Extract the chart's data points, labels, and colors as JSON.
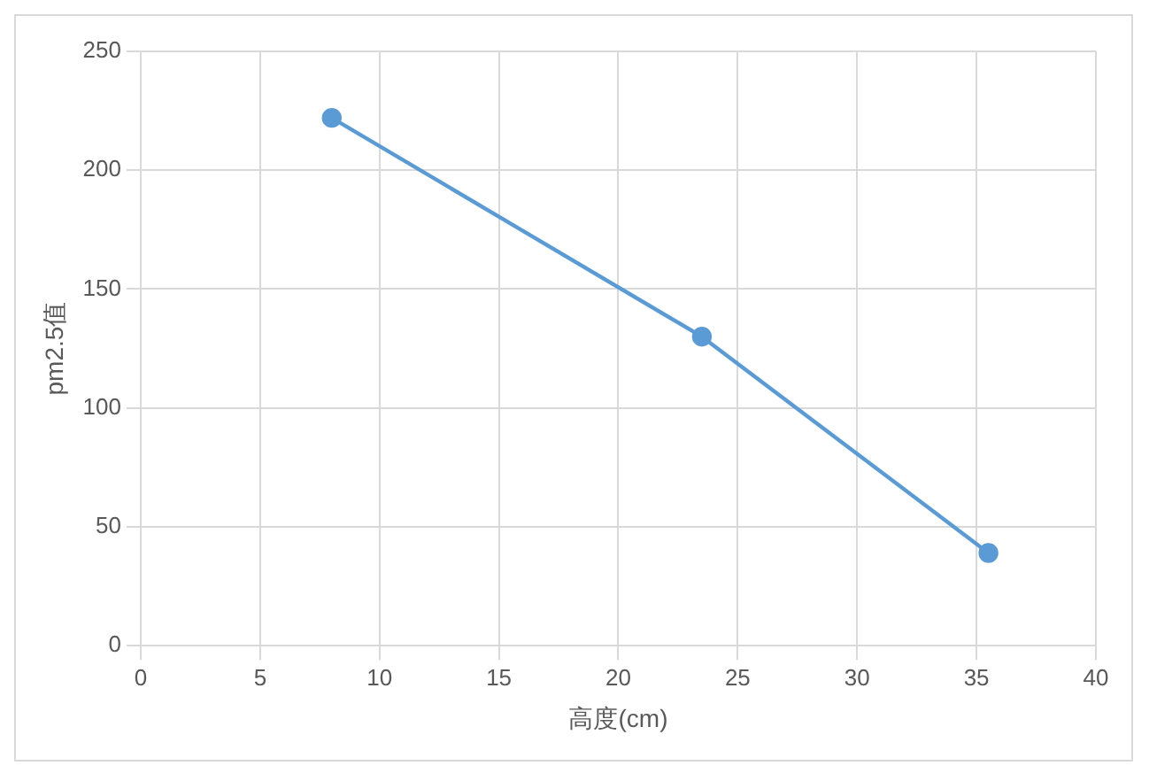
{
  "chart_data": {
    "type": "line",
    "xlabel": "高度(cm)",
    "ylabel": "pm2.5值",
    "x": [
      8,
      23.5,
      35.5
    ],
    "series": [
      {
        "color": "#5b9bd5",
        "values": [
          222,
          130,
          39
        ]
      }
    ],
    "xlim": [
      0,
      40
    ],
    "xticks": [
      0,
      5,
      10,
      15,
      20,
      25,
      30,
      35,
      40
    ],
    "ylim": [
      0,
      250
    ],
    "yticks": [
      0,
      50,
      100,
      150,
      200,
      250
    ],
    "grid": true,
    "legend": false,
    "marker": "circle",
    "line_style": "solid"
  }
}
